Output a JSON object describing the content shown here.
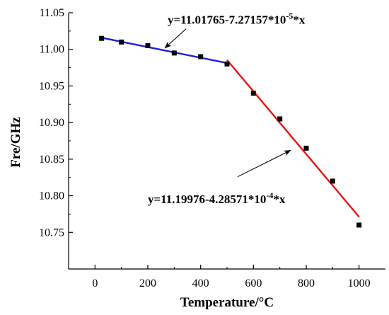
{
  "chart_data": {
    "type": "scatter",
    "xlabel": "Temperature/°C",
    "ylabel": "Fre/GHz",
    "xlim": [
      -100,
      1100
    ],
    "ylim": [
      10.7,
      11.05
    ],
    "xticks": [
      0,
      200,
      400,
      600,
      800,
      1000
    ],
    "xtick_labels": [
      "0",
      "200",
      "400",
      "600",
      "800",
      "1000"
    ],
    "yticks": [
      10.75,
      10.8,
      10.85,
      10.9,
      10.95,
      11.0,
      11.05
    ],
    "ytick_labels": [
      "10.75",
      "10.80",
      "10.85",
      "10.90",
      "10.95",
      "11.00",
      "11.05"
    ],
    "grid": false,
    "points": {
      "x": [
        25,
        100,
        200,
        300,
        400,
        500,
        600,
        700,
        800,
        900,
        1000
      ],
      "y": [
        11.015,
        11.01,
        11.005,
        10.995,
        10.99,
        10.98,
        10.94,
        10.905,
        10.865,
        10.82,
        10.76
      ],
      "color": "#000000"
    },
    "fits": [
      {
        "x_range": [
          25,
          510
        ],
        "intercept": 11.01765,
        "slope": -7.27157e-05,
        "color": "#1f1fd6"
      },
      {
        "x_range": [
          500,
          1000
        ],
        "intercept": 11.19976,
        "slope": -0.000428571,
        "color": "#ee1111"
      }
    ],
    "annotations": [
      {
        "text_before": "y=11.01765-7.27157*10",
        "sup": "-5",
        "text_after": "*x",
        "text_at": [
          275,
          11.035
        ],
        "arrow_from": [
          345,
          11.028
        ],
        "arrow_to": [
          265,
          11.002
        ]
      },
      {
        "text_before": "y=11.19976-4.28571*10",
        "sup": "-4",
        "text_after": "*x",
        "text_at": [
          200,
          10.79
        ],
        "arrow_from": [
          540,
          10.826
        ],
        "arrow_to": [
          740,
          10.862
        ]
      }
    ]
  }
}
